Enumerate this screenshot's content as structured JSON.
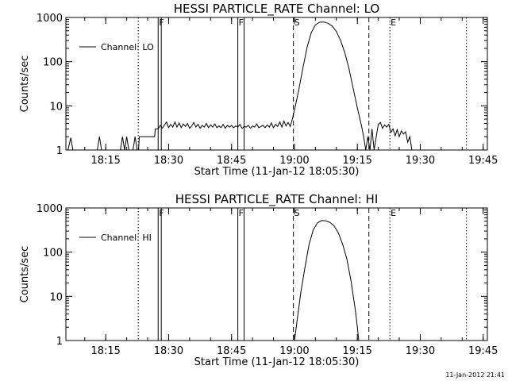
{
  "chart_data": [
    {
      "type": "line",
      "title": "HESSI PARTICLE_RATE Channel: LO",
      "xlabel": "Start Time (11-Jan-12 18:05:30)",
      "ylabel": "Counts/sec",
      "yscale": "log",
      "ylim": [
        1,
        1000
      ],
      "xlim": [
        "18:05:30",
        "19:46:00"
      ],
      "x_ticks": [
        "18:15",
        "18:30",
        "18:45",
        "19:00",
        "19:15",
        "19:30",
        "19:45"
      ],
      "y_ticks": [
        "1",
        "10",
        "100",
        "1000"
      ],
      "legend": {
        "label": "Channel: LO",
        "placement": "top-left"
      },
      "markers": [
        {
          "label": "F",
          "time": "18:27:30",
          "style": "solid"
        },
        {
          "label": "F",
          "time": "18:46:30",
          "style": "solid"
        },
        {
          "label": "S",
          "time": "18:59:45",
          "style": "dashed"
        },
        {
          "label": "E",
          "time": "19:22:45",
          "style": "dotted"
        }
      ],
      "extra_lines": [
        {
          "time": "18:22:45",
          "style": "dotted"
        },
        {
          "time": "18:28:15",
          "style": "solid"
        },
        {
          "time": "18:48:00",
          "style": "solid"
        },
        {
          "time": "19:17:45",
          "style": "dashed"
        },
        {
          "time": "19:41:00",
          "style": "dotted"
        }
      ],
      "series": [
        {
          "name": "Channel: LO",
          "points": [
            [
              "18:06:00",
              1
            ],
            [
              "18:06:40",
              1.9
            ],
            [
              "18:07:10",
              1
            ],
            [
              "18:13:00",
              1
            ],
            [
              "18:13:30",
              2
            ],
            [
              "18:14:00",
              1
            ],
            [
              "18:18:30",
              1
            ],
            [
              "18:19:00",
              2
            ],
            [
              "18:19:30",
              1
            ],
            [
              "18:20:00",
              2
            ],
            [
              "18:20:30",
              1
            ],
            [
              "18:21:30",
              1
            ],
            [
              "18:22:00",
              2
            ],
            [
              "18:22:30",
              1
            ],
            [
              "18:22:50",
              1
            ],
            [
              "18:23:00",
              2
            ],
            [
              "18:26:40",
              2
            ],
            [
              "18:26:50",
              3
            ],
            [
              "18:27:30",
              3
            ],
            [
              "18:28:00",
              3.6
            ],
            [
              "18:28:30",
              3.1
            ],
            [
              "18:29:00",
              3.7
            ],
            [
              "18:29:30",
              4.3
            ],
            [
              "18:30:00",
              3.2
            ],
            [
              "18:30:30",
              3.8
            ],
            [
              "18:31:00",
              3.3
            ],
            [
              "18:31:30",
              4.3
            ],
            [
              "18:32:00",
              3.3
            ],
            [
              "18:32:30",
              4.1
            ],
            [
              "18:33:00",
              3.2
            ],
            [
              "18:33:30",
              3.9
            ],
            [
              "18:34:00",
              3.4
            ],
            [
              "18:34:30",
              4.0
            ],
            [
              "18:35:00",
              3.1
            ],
            [
              "18:35:30",
              3.5
            ],
            [
              "18:36:00",
              4.2
            ],
            [
              "18:36:30",
              3.3
            ],
            [
              "18:37:00",
              3.8
            ],
            [
              "18:37:30",
              3.1
            ],
            [
              "18:38:00",
              3.6
            ],
            [
              "18:38:30",
              3.3
            ],
            [
              "18:39:00",
              4.0
            ],
            [
              "18:39:30",
              3.2
            ],
            [
              "18:40:00",
              3.7
            ],
            [
              "18:40:30",
              3.3
            ],
            [
              "18:41:00",
              3.9
            ],
            [
              "18:41:30",
              3.2
            ],
            [
              "18:42:00",
              3.5
            ],
            [
              "18:42:30",
              3.2
            ],
            [
              "18:43:00",
              3.8
            ],
            [
              "18:43:30",
              3.1
            ],
            [
              "18:44:00",
              3.6
            ],
            [
              "18:44:30",
              3.3
            ],
            [
              "18:45:00",
              3.6
            ],
            [
              "18:45:30",
              3.2
            ],
            [
              "18:46:00",
              3.5
            ],
            [
              "18:46:30",
              3.3
            ],
            [
              "18:47:00",
              3.8
            ],
            [
              "18:47:30",
              3.1
            ],
            [
              "18:48:00",
              3.4
            ],
            [
              "18:48:30",
              3.3
            ],
            [
              "18:49:00",
              3.6
            ],
            [
              "18:49:30",
              3.1
            ],
            [
              "18:50:00",
              3.5
            ],
            [
              "18:50:30",
              3.3
            ],
            [
              "18:51:00",
              3.9
            ],
            [
              "18:51:30",
              3.2
            ],
            [
              "18:52:00",
              3.4
            ],
            [
              "18:52:30",
              3.6
            ],
            [
              "18:53:00",
              3.2
            ],
            [
              "18:53:30",
              3.7
            ],
            [
              "18:54:00",
              3.3
            ],
            [
              "18:54:30",
              4.1
            ],
            [
              "18:55:00",
              3.2
            ],
            [
              "18:55:30",
              3.8
            ],
            [
              "18:56:00",
              3.4
            ],
            [
              "18:56:30",
              4.3
            ],
            [
              "18:57:00",
              3.3
            ],
            [
              "18:57:30",
              4.5
            ],
            [
              "18:58:00",
              3.5
            ],
            [
              "18:58:30",
              4.2
            ],
            [
              "18:59:00",
              3.4
            ],
            [
              "18:59:30",
              5
            ],
            [
              "19:00:00",
              8
            ],
            [
              "19:01:00",
              22
            ],
            [
              "19:02:00",
              70
            ],
            [
              "19:03:00",
              210
            ],
            [
              "19:04:00",
              450
            ],
            [
              "19:05:00",
              680
            ],
            [
              "19:06:00",
              780
            ],
            [
              "19:07:00",
              790
            ],
            [
              "19:08:00",
              740
            ],
            [
              "19:09:00",
              640
            ],
            [
              "19:10:00",
              480
            ],
            [
              "19:11:00",
              300
            ],
            [
              "19:12:00",
              160
            ],
            [
              "19:13:00",
              70
            ],
            [
              "19:14:00",
              25
            ],
            [
              "19:15:00",
              9
            ],
            [
              "19:16:00",
              3.5
            ],
            [
              "19:16:30",
              2
            ],
            [
              "19:17:00",
              1
            ],
            [
              "19:17:30",
              2
            ],
            [
              "19:18:00",
              1
            ],
            [
              "19:18:30",
              3
            ],
            [
              "19:19:00",
              1
            ],
            [
              "19:19:30",
              2
            ],
            [
              "19:20:00",
              3.8
            ],
            [
              "19:20:30",
              4.2
            ],
            [
              "19:21:00",
              3.1
            ],
            [
              "19:21:30",
              3.7
            ],
            [
              "19:22:00",
              3.3
            ],
            [
              "19:22:30",
              3.8
            ],
            [
              "19:23:00",
              2.5
            ],
            [
              "19:23:30",
              3
            ],
            [
              "19:24:00",
              2.1
            ],
            [
              "19:24:30",
              2.9
            ],
            [
              "19:25:00",
              2
            ],
            [
              "19:25:30",
              2.7
            ],
            [
              "19:26:00",
              2.3
            ],
            [
              "19:26:30",
              2.6
            ],
            [
              "19:27:00",
              1.5
            ],
            [
              "19:27:30",
              2
            ],
            [
              "19:28:00",
              1
            ]
          ]
        }
      ]
    },
    {
      "type": "line",
      "title": "HESSI PARTICLE_RATE Channel: HI",
      "xlabel": "Start Time (11-Jan-12 18:05:30)",
      "ylabel": "Counts/sec",
      "yscale": "log",
      "ylim": [
        1,
        1000
      ],
      "xlim": [
        "18:05:30",
        "19:46:00"
      ],
      "x_ticks": [
        "18:15",
        "18:30",
        "18:45",
        "19:00",
        "19:15",
        "19:30",
        "19:45"
      ],
      "y_ticks": [
        "1",
        "10",
        "100",
        "1000"
      ],
      "legend": {
        "label": "Channel: HI",
        "placement": "top-left"
      },
      "markers": [
        {
          "label": "F",
          "time": "18:27:30",
          "style": "solid"
        },
        {
          "label": "F",
          "time": "18:46:30",
          "style": "solid"
        },
        {
          "label": "S",
          "time": "18:59:45",
          "style": "dashed"
        },
        {
          "label": "E",
          "time": "19:22:45",
          "style": "dotted"
        }
      ],
      "extra_lines": [
        {
          "time": "18:22:45",
          "style": "dotted"
        },
        {
          "time": "18:28:15",
          "style": "solid"
        },
        {
          "time": "18:48:00",
          "style": "solid"
        },
        {
          "time": "19:17:45",
          "style": "dashed"
        },
        {
          "time": "19:41:00",
          "style": "dotted"
        }
      ],
      "series": [
        {
          "name": "Channel: HI",
          "points": [
            [
              "19:00:00",
              1
            ],
            [
              "19:00:40",
              3
            ],
            [
              "19:01:30",
              12
            ],
            [
              "19:02:30",
              45
            ],
            [
              "19:03:30",
              150
            ],
            [
              "19:04:30",
              320
            ],
            [
              "19:05:30",
              460
            ],
            [
              "19:06:30",
              520
            ],
            [
              "19:07:30",
              510
            ],
            [
              "19:08:30",
              470
            ],
            [
              "19:09:30",
              390
            ],
            [
              "19:10:30",
              270
            ],
            [
              "19:11:30",
              150
            ],
            [
              "19:12:30",
              70
            ],
            [
              "19:13:30",
              22
            ],
            [
              "19:14:30",
              5
            ],
            [
              "19:15:00",
              2
            ],
            [
              "19:15:20",
              1
            ]
          ]
        }
      ]
    }
  ],
  "footer": {
    "timestamp": "11-Jan-2012 21:41"
  }
}
